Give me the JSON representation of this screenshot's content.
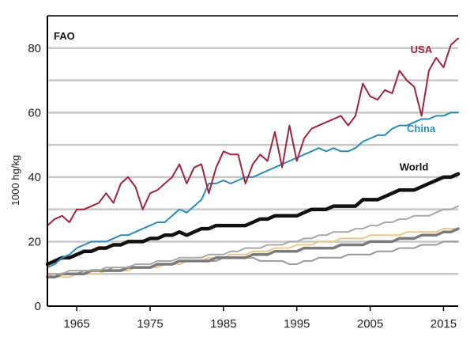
{
  "chart_data": {
    "type": "line",
    "source_label": "FAO",
    "ylabel": "1000 hg/kg",
    "xlabel": "",
    "xlim": [
      1961,
      2017
    ],
    "ylim": [
      0,
      90
    ],
    "x_ticks": [
      1965,
      1975,
      1985,
      1995,
      2005,
      2015
    ],
    "y_ticks": [
      0,
      20,
      40,
      60,
      80
    ],
    "grid": "horizontal",
    "gridlines": [
      10,
      20,
      30,
      40,
      50,
      60,
      70,
      80
    ],
    "x": [
      1961,
      1962,
      1963,
      1964,
      1965,
      1966,
      1967,
      1968,
      1969,
      1970,
      1971,
      1972,
      1973,
      1974,
      1975,
      1976,
      1977,
      1978,
      1979,
      1980,
      1981,
      1982,
      1983,
      1984,
      1985,
      1986,
      1987,
      1988,
      1989,
      1990,
      1991,
      1992,
      1993,
      1994,
      1995,
      1996,
      1997,
      1998,
      1999,
      2000,
      2001,
      2002,
      2003,
      2004,
      2005,
      2006,
      2007,
      2008,
      2009,
      2010,
      2011,
      2012,
      2013,
      2014,
      2015,
      2016,
      2017
    ],
    "series": [
      {
        "name": "USA",
        "color": "#a3223d",
        "width": 2,
        "values": [
          25,
          27,
          28,
          26,
          30,
          30,
          31,
          32,
          35,
          32,
          38,
          40,
          37,
          30,
          35,
          36,
          38,
          40,
          44,
          38,
          43,
          44,
          35,
          43,
          48,
          47,
          47,
          38,
          44,
          47,
          45,
          54,
          43,
          56,
          45,
          52,
          55,
          56,
          57,
          58,
          59,
          56,
          59,
          69,
          65,
          64,
          67,
          66,
          73,
          70,
          68,
          59,
          73,
          77,
          74,
          81,
          83
        ]
      },
      {
        "name": "China",
        "color": "#2b8bb8",
        "width": 2,
        "values": [
          12,
          13,
          15,
          16,
          18,
          19,
          20,
          20,
          20,
          21,
          22,
          22,
          23,
          24,
          25,
          26,
          26,
          28,
          30,
          29,
          31,
          33,
          38,
          38,
          39,
          38,
          39,
          40,
          40,
          41,
          42,
          43,
          44,
          45,
          46,
          47,
          48,
          49,
          48,
          49,
          48,
          48,
          49,
          51,
          52,
          53,
          53,
          55,
          56,
          56,
          57,
          58,
          58,
          59,
          59,
          60,
          60
        ]
      },
      {
        "name": "World",
        "color": "#111111",
        "width": 4.5,
        "values": [
          13,
          14,
          15,
          15,
          16,
          17,
          17,
          18,
          18,
          19,
          19,
          20,
          20,
          20,
          21,
          21,
          22,
          22,
          23,
          22,
          23,
          24,
          24,
          25,
          25,
          25,
          25,
          25,
          26,
          27,
          27,
          28,
          28,
          28,
          28,
          29,
          30,
          30,
          30,
          31,
          31,
          31,
          31,
          33,
          33,
          33,
          34,
          35,
          36,
          36,
          36,
          37,
          38,
          39,
          40,
          40,
          41
        ]
      },
      {
        "name": "",
        "color": "#a8a8a8",
        "width": 2,
        "values": [
          10,
          10,
          10,
          11,
          11,
          11,
          11,
          11,
          12,
          12,
          12,
          12,
          13,
          13,
          13,
          14,
          14,
          14,
          15,
          15,
          15,
          15,
          16,
          16,
          16,
          17,
          17,
          18,
          18,
          18,
          19,
          19,
          19,
          20,
          20,
          21,
          21,
          22,
          22,
          23,
          23,
          23,
          24,
          24,
          25,
          25,
          26,
          26,
          27,
          27,
          28,
          28,
          28,
          29,
          30,
          30,
          31
        ]
      },
      {
        "name": "",
        "color": "#7a7a7a",
        "width": 3.5,
        "values": [
          9,
          9,
          10,
          10,
          10,
          10,
          11,
          11,
          11,
          11,
          11,
          12,
          12,
          12,
          12,
          13,
          13,
          13,
          14,
          14,
          14,
          14,
          14,
          15,
          15,
          15,
          15,
          15,
          16,
          16,
          16,
          17,
          17,
          17,
          17,
          18,
          18,
          18,
          18,
          18,
          19,
          19,
          19,
          19,
          20,
          20,
          20,
          20,
          21,
          21,
          21,
          22,
          22,
          22,
          23,
          23,
          24
        ]
      },
      {
        "name": "",
        "color": "#e8c98a",
        "width": 2,
        "values": [
          10,
          9,
          9,
          9,
          10,
          10,
          10,
          10,
          11,
          11,
          11,
          11,
          12,
          12,
          12,
          12,
          13,
          13,
          13,
          14,
          14,
          14,
          15,
          15,
          15,
          16,
          16,
          16,
          17,
          17,
          17,
          18,
          18,
          18,
          19,
          19,
          19,
          20,
          20,
          20,
          21,
          21,
          21,
          21,
          22,
          22,
          22,
          22,
          22,
          23,
          23,
          23,
          23,
          23,
          24,
          24,
          24
        ]
      },
      {
        "name": "",
        "color": "#9a9a9a",
        "width": 2,
        "values": [
          10,
          10,
          10,
          10,
          10,
          11,
          11,
          11,
          11,
          12,
          12,
          12,
          12,
          12,
          12,
          13,
          13,
          13,
          13,
          14,
          14,
          14,
          14,
          14,
          15,
          15,
          15,
          15,
          15,
          14,
          14,
          14,
          14,
          13,
          13,
          14,
          14,
          15,
          15,
          15,
          15,
          16,
          16,
          16,
          16,
          17,
          17,
          17,
          18,
          18,
          18,
          19,
          19,
          19,
          20,
          20,
          20
        ]
      }
    ],
    "series_labels": [
      {
        "text": "USA",
        "x": 2010.5,
        "y": 78.5,
        "color": "#a3223d"
      },
      {
        "text": "China",
        "x": 2010,
        "y": 54,
        "color": "#2b8bb8"
      },
      {
        "text": "World",
        "x": 2009,
        "y": 42,
        "color": "#111111"
      }
    ]
  }
}
